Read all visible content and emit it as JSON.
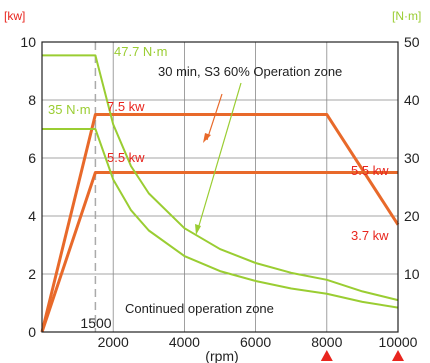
{
  "chart_data": {
    "type": "line",
    "xlabel": "(rpm)",
    "y_left_unit": "[kw]",
    "y_right_unit": "[N·m]",
    "x_ticks": [
      "2000",
      "4000",
      "6000",
      "8000",
      "10000"
    ],
    "y_left_ticks": [
      "0",
      "2",
      "4",
      "6",
      "8",
      "10"
    ],
    "y_right_ticks": [
      "10",
      "20",
      "30",
      "40",
      "50"
    ],
    "xlim": [
      0,
      10000
    ],
    "ylim_left": [
      0,
      10
    ],
    "ylim_right": [
      0,
      50
    ],
    "base_speed_label": "1500",
    "base_speed": 1500,
    "grid": true,
    "colors": {
      "power": "#e8692a",
      "torque": "#9acd32",
      "grid": "#888888",
      "marker": "#e8251e",
      "label_red": "#e8251e"
    },
    "series": [
      {
        "kind": "power",
        "points": [
          [
            0,
            0
          ],
          [
            1500,
            7.5
          ],
          [
            8000,
            7.5
          ],
          [
            10000,
            3.7
          ]
        ]
      },
      {
        "kind": "power",
        "points": [
          [
            0,
            0
          ],
          [
            1500,
            5.5
          ],
          [
            8000,
            5.5
          ],
          [
            10000,
            5.5
          ]
        ]
      },
      {
        "kind": "torque",
        "points": [
          [
            0,
            47.7
          ],
          [
            1500,
            47.7
          ],
          [
            2000,
            35.8
          ],
          [
            2500,
            28.6
          ],
          [
            3000,
            23.9
          ],
          [
            4000,
            17.9
          ],
          [
            5000,
            14.3
          ],
          [
            6000,
            11.9
          ],
          [
            7000,
            10.2
          ],
          [
            8000,
            9.0
          ],
          [
            9000,
            7.0
          ],
          [
            10000,
            5.5
          ]
        ]
      },
      {
        "kind": "torque",
        "points": [
          [
            0,
            35
          ],
          [
            1500,
            35
          ],
          [
            2000,
            26.3
          ],
          [
            2500,
            21.0
          ],
          [
            3000,
            17.5
          ],
          [
            4000,
            13.1
          ],
          [
            5000,
            10.5
          ],
          [
            6000,
            8.8
          ],
          [
            7000,
            7.5
          ],
          [
            8000,
            6.6
          ],
          [
            9000,
            5.2
          ],
          [
            10000,
            4.2
          ]
        ]
      }
    ],
    "annotations": {
      "s3_torque": "47.7 N·m",
      "s1_torque": "35 N·m",
      "s3_power": "7.5 kw",
      "s1_power": "5.5 kw",
      "s1_power_high": "5.5 kw",
      "s3_power_high": "3.7 kw",
      "s3_zone": "30 min, S3 60% Operation zone",
      "s1_zone": "Continued operation zone"
    },
    "markers_x": [
      8000,
      10000
    ]
  }
}
